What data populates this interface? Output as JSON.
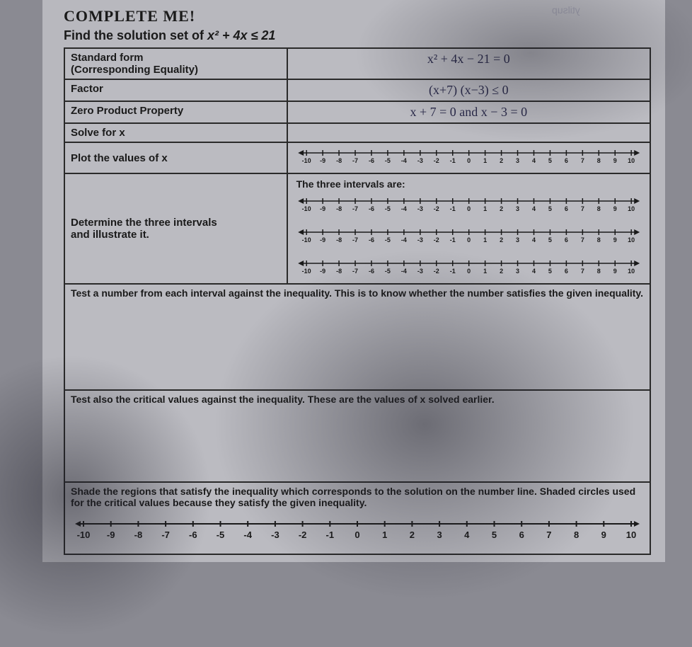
{
  "heading": "COMPLETE ME!",
  "prompt_prefix": "Find the solution set of ",
  "prompt_math": "x² + 4x ≤ 21",
  "rows": {
    "standard_form_label_l1": "Standard form",
    "standard_form_label_l2": "(Corresponding Equality)",
    "standard_form_val": "x² + 4x − 21 = 0",
    "factor_label": "Factor",
    "factor_val": "(x+7) (x−3) ≤ 0",
    "zpp_label": "Zero Product Property",
    "zpp_val": "x + 7 = 0   and   x − 3 = 0",
    "solve_label": "Solve for x",
    "plot_label": "Plot the values of x",
    "intervals_label_l1": "Determine the three intervals",
    "intervals_label_l2": "and illustrate it.",
    "intervals_right_heading": "The three intervals are:"
  },
  "sections": {
    "test_interval": "Test a number from each interval against the inequality. This is to know whether the number satisfies the given inequality.",
    "test_critical": "Test also the critical values against the inequality. These are the values of x solved earlier.",
    "shade": "Shade the regions that satisfy the inequality which corresponds to the solution on the number line. Shaded circles used for the critical values because they satisfy the given inequality."
  },
  "numberline": {
    "min": -10,
    "max": 10,
    "tick_color": "#1a1a1a",
    "line_color": "#1a1a1a",
    "label_fontsize": 9
  },
  "faint_text": "ytilsup"
}
